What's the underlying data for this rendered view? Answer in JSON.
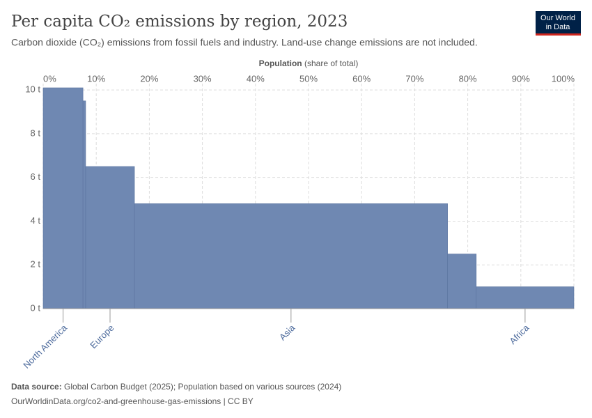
{
  "chart_data": {
    "type": "variable-width-bar",
    "title": "Per capita CO₂ emissions by region, 2023",
    "subtitle": "Carbon dioxide (CO₂) emissions from fossil fuels and industry. Land-use change emissions are not included.",
    "xlabel": "Population",
    "xlabel_note": "(share of total)",
    "categories": [
      "North America",
      null,
      "Europe",
      "Asia",
      null,
      "Africa"
    ],
    "widths": [
      7.5,
      0.5,
      9.2,
      59,
      5.4,
      18.4
    ],
    "values": [
      10.1,
      9.5,
      6.5,
      4.8,
      2.5,
      1.0
    ],
    "color": "#6f88b2",
    "xlim": [
      0,
      100
    ],
    "xticks": [
      {
        "value": 0,
        "label": "0%"
      },
      {
        "value": 10,
        "label": "10%"
      },
      {
        "value": 20,
        "label": "20%"
      },
      {
        "value": 30,
        "label": "30%"
      },
      {
        "value": 40,
        "label": "40%"
      },
      {
        "value": 50,
        "label": "50%"
      },
      {
        "value": 60,
        "label": "60%"
      },
      {
        "value": 70,
        "label": "70%"
      },
      {
        "value": 80,
        "label": "80%"
      },
      {
        "value": 90,
        "label": "90%"
      },
      {
        "value": 100,
        "label": "100%"
      }
    ],
    "ylim": [
      0,
      10.1
    ],
    "yticks": [
      {
        "value": 0,
        "label": "0 t"
      },
      {
        "value": 2,
        "label": "2 t"
      },
      {
        "value": 4,
        "label": "4 t"
      },
      {
        "value": 6,
        "label": "6 t"
      },
      {
        "value": 8,
        "label": "8 t"
      },
      {
        "value": 10,
        "label": "10 t"
      }
    ],
    "grid": true,
    "source_label": "Data source:",
    "source": "Global Carbon Budget (2025); Population based on various sources (2024)",
    "url": "OurWorldinData.org/co2-and-greenhouse-gas-emissions | CC BY",
    "logo": [
      "Our World",
      "in Data"
    ]
  }
}
